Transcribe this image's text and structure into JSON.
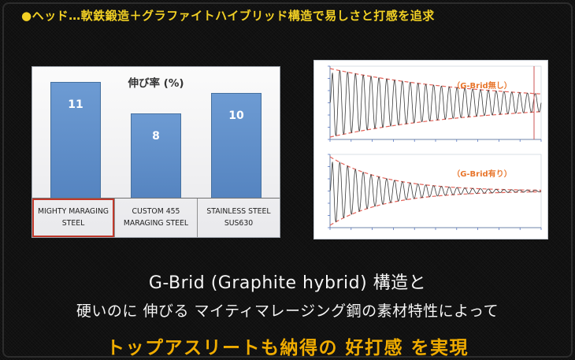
{
  "header": {
    "text": "●ヘッド…軟鉄鍛造＋グラファイトハイブリッド構造で易しさと打感を追求",
    "color": "#f2d024"
  },
  "footer": {
    "line1": "G-Brid (Graphite hybrid) 構造と",
    "line2": "硬いのに 伸びる マイティマレージング鋼の素材特性によって",
    "highlight": "トップアスリートも納得の 好打感 を実現",
    "text_color": "#f5f5f5",
    "highlight_color": "#f0ac00"
  },
  "chart_data": [
    {
      "type": "bar",
      "title": "伸び率 (%)",
      "categories": [
        "MIGHTY MARAGING STEEL",
        "CUSTOM 455 MARAGING STEEL",
        "STAINLESS STEEL SUS630"
      ],
      "category_lines": [
        [
          "MIGHTY MARAGING",
          "STEEL"
        ],
        [
          "CUSTOM 455",
          "MARAGING STEEL"
        ],
        [
          "STAINLESS STEEL",
          "SUS630"
        ]
      ],
      "values": [
        11,
        8,
        10
      ],
      "ylim": [
        0,
        12
      ],
      "grid": false,
      "legend": false,
      "bar_color": "#5b8ac6",
      "value_label_color": "#ffffff",
      "highlight_index": 0,
      "highlight_border_color": "#c0392b"
    },
    {
      "type": "line",
      "subtype": "damped-oscillation",
      "label": "（G-Brid無し）",
      "waveform": {
        "decay": 1.35,
        "cycles": 27,
        "amplitude": 1.0
      },
      "envelope": "exponential-decay-dashed",
      "envelope_color": "#e4645a",
      "signal_color": "#3a3a3a",
      "label_color": "#e8762c",
      "right_marker": true
    },
    {
      "type": "line",
      "subtype": "damped-oscillation",
      "label": "（G-Brid有り）",
      "waveform": {
        "decay": 3.8,
        "cycles": 27,
        "amplitude": 1.0
      },
      "envelope": "exponential-decay-dashed",
      "envelope_color": "#e4645a",
      "signal_color": "#3a3a3a",
      "label_color": "#e8762c",
      "right_marker": false
    }
  ]
}
